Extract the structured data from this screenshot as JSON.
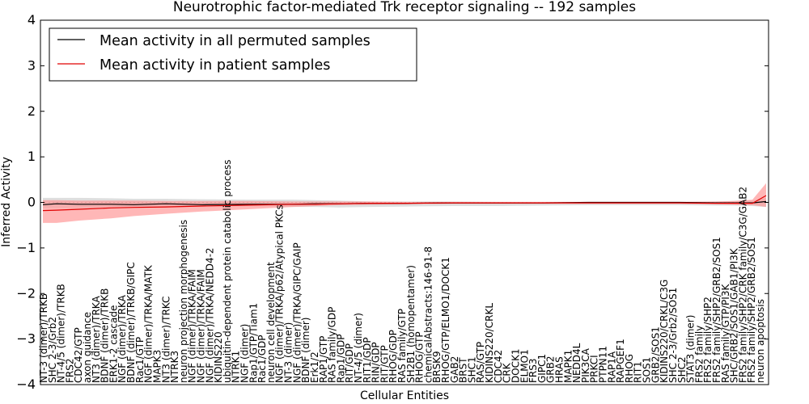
{
  "chart_data": {
    "type": "line",
    "title": "Neurotrophic factor-mediated Trk receptor signaling -- 192 samples",
    "xlabel": "Cellular Entities",
    "ylabel": "Inferred Activity",
    "ylim": [
      -4,
      4
    ],
    "yticks": [
      -4,
      -3,
      -2,
      -1,
      0,
      1,
      2,
      3,
      4
    ],
    "grid": false,
    "legend_position": "top-left",
    "n_entities": 160,
    "series": [
      {
        "name": "Mean activity in all permuted samples",
        "color": "#000000",
        "band_color": "#c8c8c8",
        "values_x": [
          0,
          3,
          8,
          15,
          20,
          27,
          35,
          45,
          55,
          60,
          65,
          72,
          80,
          90,
          100,
          110,
          120,
          130,
          140,
          148,
          152,
          156,
          159
        ],
        "values": [
          -0.05,
          -0.03,
          -0.04,
          -0.04,
          -0.05,
          -0.03,
          -0.05,
          -0.04,
          -0.04,
          -0.03,
          -0.03,
          -0.02,
          -0.02,
          -0.01,
          -0.01,
          -0.01,
          0,
          0,
          0,
          -0.01,
          -0.01,
          -0.01,
          0.02
        ],
        "band_upper": [
          0.1,
          0.1,
          0.1,
          0.09,
          0.08,
          0.08,
          0.07,
          0.06,
          0.06,
          0.05,
          0.04,
          0.02,
          0.02,
          0.02,
          0.01,
          0.01,
          0.01,
          0.01,
          0.01,
          0.02,
          0.03,
          0.04,
          0.1
        ],
        "band_lower": [
          -0.12,
          -0.12,
          -0.12,
          -0.1,
          -0.1,
          -0.1,
          -0.09,
          -0.08,
          -0.1,
          -0.1,
          -0.11,
          -0.1,
          -0.09,
          -0.08,
          -0.08,
          -0.07,
          -0.06,
          -0.06,
          -0.06,
          -0.07,
          -0.07,
          -0.08,
          -0.1
        ]
      },
      {
        "name": "Mean activity in patient samples",
        "color": "#e00000",
        "band_color": "#ff9090",
        "values_x": [
          0,
          3,
          8,
          15,
          20,
          27,
          35,
          45,
          55,
          60,
          65,
          72,
          80,
          90,
          100,
          110,
          120,
          130,
          140,
          148,
          152,
          156,
          159
        ],
        "values": [
          -0.18,
          -0.17,
          -0.15,
          -0.12,
          -0.11,
          -0.1,
          -0.08,
          -0.06,
          -0.04,
          -0.04,
          -0.03,
          -0.02,
          -0.02,
          -0.01,
          -0.01,
          -0.01,
          -0.01,
          -0.01,
          -0.01,
          -0.02,
          -0.02,
          -0.02,
          0.15
        ],
        "band_upper": [
          0.05,
          0.05,
          0.04,
          0.04,
          0.04,
          0.03,
          0.03,
          0.03,
          0.02,
          0.02,
          0.02,
          0.02,
          0.01,
          0.01,
          0.01,
          0.01,
          0.01,
          0.01,
          0.01,
          0.02,
          0.03,
          0.06,
          0.42
        ],
        "band_lower": [
          -0.45,
          -0.45,
          -0.4,
          -0.35,
          -0.3,
          -0.25,
          -0.2,
          -0.15,
          -0.1,
          -0.08,
          -0.06,
          -0.05,
          -0.04,
          -0.03,
          -0.03,
          -0.03,
          -0.03,
          -0.03,
          -0.03,
          -0.04,
          -0.05,
          -0.06,
          -0.1
        ]
      }
    ],
    "entity_labels": [
      {
        "i": 0,
        "text": "NT-3 (dimer)/TRKB",
        "y": -4
      },
      {
        "i": 1,
        "text": "SHC 2-3/Grb2",
        "y": -4
      },
      {
        "i": 2,
        "text": "NT-4/5 (dimer)/TRKB",
        "y": -4
      },
      {
        "i": 3,
        "text": "FRS2",
        "y": -4
      },
      {
        "i": 4,
        "text": "CDC42/GTP",
        "y": -4
      },
      {
        "i": 5,
        "text": "axon guidance",
        "y": -4
      },
      {
        "i": 6,
        "text": "NT3 (dimer)/TRKA",
        "y": -4
      },
      {
        "i": 7,
        "text": "BDNF (dimer)/TRKB",
        "y": -4
      },
      {
        "i": 8,
        "text": "ERK1-2 cascade",
        "y": -4
      },
      {
        "i": 9,
        "text": "NGF (dimer)/TRKA",
        "y": -4
      },
      {
        "i": 10,
        "text": "BDNF (dimer)/TRKB/GIPC",
        "y": -4
      },
      {
        "i": 11,
        "text": "Rac1/GTP",
        "y": -4
      },
      {
        "i": 12,
        "text": "NGF (dimer)/TRKA/MATK",
        "y": -4
      },
      {
        "i": 13,
        "text": "MAPK3",
        "y": -4
      },
      {
        "i": 14,
        "text": "NT3 (dimer)/TRKC",
        "y": -4
      },
      {
        "i": 15,
        "text": "NTRK3",
        "y": -4
      },
      {
        "i": 16,
        "text": "neuron projection morphogenesis",
        "y": -4
      },
      {
        "i": 17,
        "text": "NGF (dimer)/TRKA/FAIM",
        "y": -4
      },
      {
        "i": 18,
        "text": "NGF (dimer)/TRKA/FAIM",
        "y": -4
      },
      {
        "i": 19,
        "text": "NGF (dimer)/TRKA/NEDD4-2",
        "y": -4
      },
      {
        "i": 20,
        "text": "KIDINS220",
        "y": -4
      },
      {
        "i": 21,
        "text": "ubiquitin-dependent protein catabolic process",
        "y": -4
      },
      {
        "i": 22,
        "text": "NTRK1",
        "y": -4
      },
      {
        "i": 23,
        "text": "NGF (dimer)",
        "y": -4
      },
      {
        "i": 24,
        "text": "Rap1/GTP/Tiam1",
        "y": -4
      },
      {
        "i": 25,
        "text": "Rac1/GDP",
        "y": -4
      },
      {
        "i": 26,
        "text": "neuron cell development",
        "y": -4
      },
      {
        "i": 27,
        "text": "NGF (dimer)/TRKA/p62/Atypical PKCs",
        "y": -4
      },
      {
        "i": 28,
        "text": "NT-3 (dimer)",
        "y": -4
      },
      {
        "i": 29,
        "text": "NGF (dimer)/TRKA/GIPC/GAIP",
        "y": -4
      },
      {
        "i": 30,
        "text": "BDNF (dimer)",
        "y": -4
      },
      {
        "i": 31,
        "text": "Erk1/2",
        "y": -4
      },
      {
        "i": 32,
        "text": "RAP1/GTP",
        "y": -4
      },
      {
        "i": 33,
        "text": "RAS family/GDP",
        "y": -4
      },
      {
        "i": 34,
        "text": "Rap1/GDP",
        "y": -4
      },
      {
        "i": 35,
        "text": "RIT/GDP",
        "y": -4
      },
      {
        "i": 36,
        "text": "NT-4/5 (dimer)",
        "y": -4
      },
      {
        "i": 37,
        "text": "RIT1/GDP",
        "y": -4
      },
      {
        "i": 38,
        "text": "RIN/GDP",
        "y": -4
      },
      {
        "i": 39,
        "text": "RIT/GTP",
        "y": -4
      },
      {
        "i": 40,
        "text": "RHOG/GDP",
        "y": -4
      },
      {
        "i": 41,
        "text": "RAS family/GTP",
        "y": -4
      },
      {
        "i": 42,
        "text": "SH2B1 (homopentamer)",
        "y": -4
      },
      {
        "i": 43,
        "text": "RHOG/GTP",
        "y": -4
      },
      {
        "i": 44,
        "text": "chemicalAbstracts:146-91-8",
        "y": -4
      },
      {
        "i": 45,
        "text": "BRSK9",
        "y": -4
      },
      {
        "i": 46,
        "text": "RHOG/GTP/ELMO1/DOCK1",
        "y": -4
      },
      {
        "i": 47,
        "text": "GAB2",
        "y": -4
      },
      {
        "i": 48,
        "text": "BRST",
        "y": -4
      },
      {
        "i": 49,
        "text": "SHC1",
        "y": -4
      },
      {
        "i": 50,
        "text": "RAS/GTP",
        "y": -4
      },
      {
        "i": 51,
        "text": "KIDINS220/CRKL",
        "y": -4
      },
      {
        "i": 52,
        "text": "CDC42",
        "y": -4
      },
      {
        "i": 53,
        "text": "CRK",
        "y": -4
      },
      {
        "i": 54,
        "text": "DOCK1",
        "y": -4
      },
      {
        "i": 55,
        "text": "ELMO1",
        "y": -4
      },
      {
        "i": 56,
        "text": "FRS3",
        "y": -4
      },
      {
        "i": 57,
        "text": "GIPC1",
        "y": -4
      },
      {
        "i": 58,
        "text": "GRB2",
        "y": -4
      },
      {
        "i": 59,
        "text": "HRAS",
        "y": -4
      },
      {
        "i": 60,
        "text": "MAPK1",
        "y": -4
      },
      {
        "i": 61,
        "text": "NEDD4L",
        "y": -4
      },
      {
        "i": 62,
        "text": "PIK3CA",
        "y": -4
      },
      {
        "i": 63,
        "text": "PRKCI",
        "y": -4
      },
      {
        "i": 64,
        "text": "PTPN11",
        "y": -4
      },
      {
        "i": 65,
        "text": "RAP1A",
        "y": -4
      },
      {
        "i": 66,
        "text": "RAPGEF1",
        "y": -4
      },
      {
        "i": 67,
        "text": "RHOG",
        "y": -4
      },
      {
        "i": 68,
        "text": "RIT1",
        "y": -4
      },
      {
        "i": 69,
        "text": "SOS1",
        "y": -4
      },
      {
        "i": 70,
        "text": "GRB2/SOS1",
        "y": -4
      },
      {
        "i": 71,
        "text": "KIDINS220/CRKL/C3G",
        "y": -4
      },
      {
        "i": 72,
        "text": "SHC 2-3/Grb2/SOS1",
        "y": -4
      },
      {
        "i": 73,
        "text": "SHC2",
        "y": -4
      },
      {
        "i": 74,
        "text": "STAT3 (dimer)",
        "y": -4
      },
      {
        "i": 75,
        "text": "FRS2 family",
        "y": -4
      },
      {
        "i": 76,
        "text": "FRS2 family/SHP2",
        "y": -4
      },
      {
        "i": 77,
        "text": "FRS2 family/SHP2/GRB2/SOS1",
        "y": -4
      },
      {
        "i": 78,
        "text": "RAS family/GTP/PI3K",
        "y": -4
      },
      {
        "i": 79,
        "text": "SHC/GRB2/SOS1/GAB1/PI3K",
        "y": -4
      },
      {
        "i": 80,
        "text": "FRS2 family/SHP2/CRK family/C3G/GAB2",
        "y": -4
      },
      {
        "i": 81,
        "text": "FRS2 family/SHP2/GRB2/SOS1",
        "y": -4
      },
      {
        "i": 82,
        "text": "neuron apoptosis",
        "y": -4
      }
    ]
  }
}
